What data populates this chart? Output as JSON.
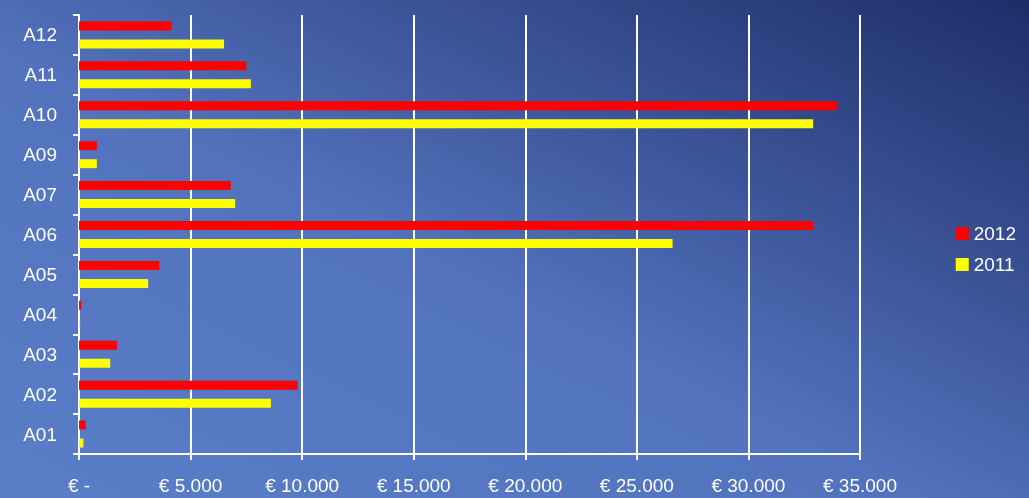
{
  "chart_data": {
    "type": "bar",
    "orientation": "horizontal",
    "categories": [
      "A12",
      "A11",
      "A10",
      "A09",
      "A07",
      "A06",
      "A05",
      "A04",
      "A03",
      "A02",
      "A01"
    ],
    "series": [
      {
        "name": "2012",
        "color": "#ff0000",
        "values": [
          4150,
          7500,
          34000,
          800,
          6800,
          32900,
          3600,
          100,
          1700,
          9800,
          300
        ]
      },
      {
        "name": "2011",
        "color": "#ffff00",
        "values": [
          6500,
          7700,
          32900,
          800,
          7000,
          26600,
          3100,
          50,
          1400,
          8600,
          200
        ]
      }
    ],
    "xlim": [
      0,
      35000
    ],
    "xticks": [
      {
        "value": 0,
        "label": "€ -"
      },
      {
        "value": 5000,
        "label": "€ 5.000"
      },
      {
        "value": 10000,
        "label": "€ 10.000"
      },
      {
        "value": 15000,
        "label": "€ 15.000"
      },
      {
        "value": 20000,
        "label": "€ 20.000"
      },
      {
        "value": 25000,
        "label": "€ 25.000"
      },
      {
        "value": 30000,
        "label": "€ 30.000"
      },
      {
        "value": 35000,
        "label": "€ 35.000"
      }
    ],
    "grid": "x",
    "legend": "right"
  }
}
